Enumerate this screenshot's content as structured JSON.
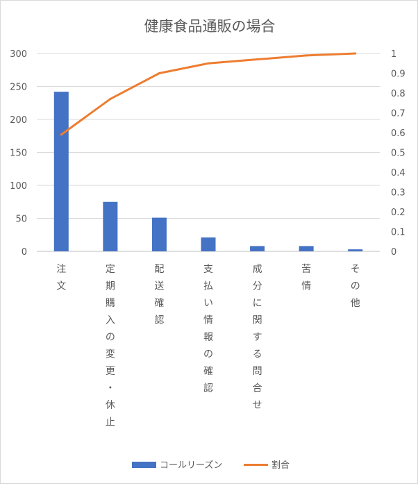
{
  "chart_data": {
    "type": "bar",
    "title": "健康食品通販の場合",
    "categories": [
      "注文",
      "定期購入の変更・休止",
      "配送確認",
      "支払い情報の確認",
      "成分に関する問合せ",
      "苦情",
      "その他"
    ],
    "series": [
      {
        "name": "コールリーズン",
        "type": "bar",
        "axis": "left",
        "color": "#4472c4",
        "values": [
          242,
          75,
          51,
          21,
          8,
          8,
          3
        ]
      },
      {
        "name": "割合",
        "type": "line",
        "axis": "right",
        "color": "#ed7d31",
        "values": [
          0.59,
          0.77,
          0.9,
          0.95,
          0.97,
          0.99,
          1.0
        ]
      }
    ],
    "y_left": {
      "min": 0,
      "max": 300,
      "ticks": [
        "0",
        "50",
        "100",
        "150",
        "200",
        "250",
        "300"
      ]
    },
    "y_right": {
      "min": 0,
      "max": 1,
      "ticks": [
        "0",
        "0.1",
        "0.2",
        "0.3",
        "0.4",
        "0.5",
        "0.6",
        "0.7",
        "0.8",
        "0.9",
        "1"
      ]
    },
    "gridlines": true,
    "legend_position": "bottom"
  }
}
